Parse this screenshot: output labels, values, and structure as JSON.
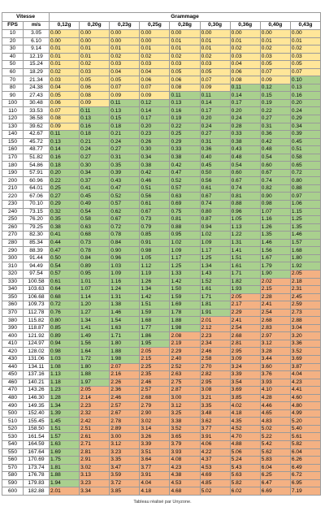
{
  "header": {
    "groups": [
      "Vitesse",
      "Grammage"
    ],
    "columns": [
      "FPS",
      "m/s",
      "0,12g",
      "0,20g",
      "0,23g",
      "0,25g",
      "0,28g",
      "0,30g",
      "0,36g",
      "0,40g",
      "0,43g"
    ]
  },
  "rows": [
    [
      "10",
      "3.05",
      "0.00",
      "0.00",
      "0.00",
      "0.00",
      "0.00",
      "0.00",
      "0.00",
      "0.00",
      "0.00"
    ],
    [
      "20",
      "6.10",
      "0.00",
      "0.00",
      "0.00",
      "0.00",
      "0.01",
      "0.01",
      "0.01",
      "0.01",
      "0.01"
    ],
    [
      "30",
      "9.14",
      "0.01",
      "0.01",
      "0.01",
      "0.01",
      "0.01",
      "0.01",
      "0.02",
      "0.02",
      "0.02"
    ],
    [
      "40",
      "12.19",
      "0.01",
      "0.01",
      "0.02",
      "0.02",
      "0.02",
      "0.02",
      "0.03",
      "0.03",
      "0.03"
    ],
    [
      "50",
      "15.24",
      "0.01",
      "0.02",
      "0.03",
      "0.03",
      "0.03",
      "0.03",
      "0.04",
      "0.05",
      "0.05"
    ],
    [
      "60",
      "18.29",
      "0.02",
      "0.03",
      "0.04",
      "0.04",
      "0.05",
      "0.05",
      "0.06",
      "0.07",
      "0.07"
    ],
    [
      "70",
      "21.34",
      "0.03",
      "0.05",
      "0.05",
      "0.06",
      "0.06",
      "0.07",
      "0.08",
      "0.09",
      "0.10"
    ],
    [
      "80",
      "24.38",
      "0.04",
      "0.06",
      "0.07",
      "0.07",
      "0.08",
      "0.09",
      "0.11",
      "0.12",
      "0.13"
    ],
    [
      "90",
      "27.43",
      "0.05",
      "0.08",
      "0.09",
      "0.09",
      "0.11",
      "0.11",
      "0.14",
      "0.15",
      "0.16"
    ],
    [
      "100",
      "30.48",
      "0.06",
      "0.09",
      "0.11",
      "0.12",
      "0.13",
      "0.14",
      "0.17",
      "0.19",
      "0.20"
    ],
    [
      "110",
      "33.53",
      "0.07",
      "0.11",
      "0.13",
      "0.14",
      "0.16",
      "0.17",
      "0.20",
      "0.22",
      "0.24"
    ],
    [
      "120",
      "36.58",
      "0.08",
      "0.13",
      "0.15",
      "0.17",
      "0.19",
      "0.20",
      "0.24",
      "0.27",
      "0.29"
    ],
    [
      "130",
      "39.62",
      "0.09",
      "0.16",
      "0.18",
      "0.20",
      "0.22",
      "0.24",
      "0.28",
      "0.31",
      "0.34"
    ],
    [
      "140",
      "42.67",
      "0.11",
      "0.18",
      "0.21",
      "0.23",
      "0.25",
      "0.27",
      "0.33",
      "0.36",
      "0.39"
    ],
    [
      "150",
      "45.72",
      "0.13",
      "0.21",
      "0.24",
      "0.26",
      "0.29",
      "0.31",
      "0.38",
      "0.42",
      "0.45"
    ],
    [
      "160",
      "48.77",
      "0.14",
      "0.24",
      "0.27",
      "0.30",
      "0.33",
      "0.36",
      "0.43",
      "0.48",
      "0.51"
    ],
    [
      "170",
      "51.82",
      "0.16",
      "0.27",
      "0.31",
      "0.34",
      "0.38",
      "0.40",
      "0.48",
      "0.54",
      "0.58"
    ],
    [
      "180",
      "54.86",
      "0.18",
      "0.30",
      "0.35",
      "0.38",
      "0.42",
      "0.45",
      "0.54",
      "0.60",
      "0.65"
    ],
    [
      "190",
      "57.91",
      "0.20",
      "0.34",
      "0.39",
      "0.42",
      "0.47",
      "0.50",
      "0.60",
      "0.67",
      "0.72"
    ],
    [
      "200",
      "60.96",
      "0.22",
      "0.37",
      "0.43",
      "0.46",
      "0.52",
      "0.56",
      "0.67",
      "0.74",
      "0.80"
    ],
    [
      "210",
      "64.01",
      "0.25",
      "0.41",
      "0.47",
      "0.51",
      "0.57",
      "0.61",
      "0.74",
      "0.82",
      "0.88"
    ],
    [
      "220",
      "67.06",
      "0.27",
      "0.45",
      "0.52",
      "0.56",
      "0.63",
      "0.67",
      "0.81",
      "0.90",
      "0.97"
    ],
    [
      "230",
      "70.10",
      "0.29",
      "0.49",
      "0.57",
      "0.61",
      "0.69",
      "0.74",
      "0.88",
      "0.98",
      "1.06"
    ],
    [
      "240",
      "73.15",
      "0.32",
      "0.54",
      "0.62",
      "0.67",
      "0.75",
      "0.80",
      "0.96",
      "1.07",
      "1.15"
    ],
    [
      "250",
      "76.20",
      "0.35",
      "0.58",
      "0.67",
      "0.73",
      "0.81",
      "0.87",
      "1.05",
      "1.16",
      "1.25"
    ],
    [
      "260",
      "79.25",
      "0.38",
      "0.63",
      "0.72",
      "0.79",
      "0.88",
      "0.94",
      "1.13",
      "1.26",
      "1.35"
    ],
    [
      "270",
      "82.30",
      "0.41",
      "0.68",
      "0.78",
      "0.85",
      "0.95",
      "1.02",
      "1.22",
      "1.35",
      "1.46"
    ],
    [
      "280",
      "85.34",
      "0.44",
      "0.73",
      "0.84",
      "0.91",
      "1.02",
      "1.09",
      "1.31",
      "1.46",
      "1.57"
    ],
    [
      "290",
      "88.39",
      "0.47",
      "0.78",
      "0.90",
      "0.98",
      "1.09",
      "1.17",
      "1.41",
      "1.56",
      "1.68"
    ],
    [
      "300",
      "91.44",
      "0.50",
      "0.84",
      "0.96",
      "1.05",
      "1.17",
      "1.25",
      "1.51",
      "1.67",
      "1.80"
    ],
    [
      "310",
      "94.49",
      "0.54",
      "0.89",
      "1.03",
      "1.12",
      "1.25",
      "1.34",
      "1.61",
      "1.79",
      "1.92"
    ],
    [
      "320",
      "97.54",
      "0.57",
      "0.95",
      "1.09",
      "1.19",
      "1.33",
      "1.43",
      "1.71",
      "1.90",
      "2.05"
    ],
    [
      "330",
      "100.58",
      "0.61",
      "1.01",
      "1.16",
      "1.26",
      "1.42",
      "1.52",
      "1.82",
      "2.02",
      "2.18"
    ],
    [
      "340",
      "103.63",
      "0.64",
      "1.07",
      "1.24",
      "1.34",
      "1.50",
      "1.61",
      "1.93",
      "2.15",
      "2.31"
    ],
    [
      "350",
      "106.68",
      "0.68",
      "1.14",
      "1.31",
      "1.42",
      "1.59",
      "1.71",
      "2.05",
      "2.28",
      "2.45"
    ],
    [
      "360",
      "109.73",
      "0.72",
      "1.20",
      "1.38",
      "1.51",
      "1.69",
      "1.81",
      "2.17",
      "2.41",
      "2.59"
    ],
    [
      "370",
      "112.78",
      "0.76",
      "1.27",
      "1.46",
      "1.59",
      "1.78",
      "1.91",
      "2.29",
      "2.54",
      "2.73"
    ],
    [
      "380",
      "115.82",
      "0.80",
      "1.34",
      "1.54",
      "1.68",
      "1.88",
      "2.01",
      "2.41",
      "2.68",
      "2.88"
    ],
    [
      "390",
      "118.87",
      "0.85",
      "1.41",
      "1.63",
      "1.77",
      "1.98",
      "2.12",
      "2.54",
      "2.83",
      "3.04"
    ],
    [
      "400",
      "121.92",
      "0.89",
      "1.49",
      "1.71",
      "1.86",
      "2.08",
      "2.23",
      "2.68",
      "2.97",
      "3.20"
    ],
    [
      "410",
      "124.97",
      "0.94",
      "1.56",
      "1.80",
      "1.95",
      "2.19",
      "2.34",
      "2.81",
      "3.12",
      "3.36"
    ],
    [
      "420",
      "128.02",
      "0.98",
      "1.64",
      "1.88",
      "2.05",
      "2.29",
      "2.46",
      "2.95",
      "3.28",
      "3.52"
    ],
    [
      "430",
      "131.06",
      "1.03",
      "1.72",
      "1.98",
      "2.15",
      "2.40",
      "2.58",
      "3.09",
      "3.44",
      "3.69"
    ],
    [
      "440",
      "134.11",
      "1.08",
      "1.80",
      "2.07",
      "2.25",
      "2.52",
      "2.70",
      "3.24",
      "3.60",
      "3.87"
    ],
    [
      "450",
      "137.16",
      "1.13",
      "1.88",
      "2.16",
      "2.35",
      "2.63",
      "2.82",
      "3.39",
      "3.76",
      "4.04"
    ],
    [
      "460",
      "140.21",
      "1.18",
      "1.97",
      "2.26",
      "2.46",
      "2.75",
      "2.95",
      "3.54",
      "3.93",
      "4.23"
    ],
    [
      "470",
      "143.26",
      "1.23",
      "2.05",
      "2.36",
      "2.57",
      "2.87",
      "3.08",
      "3.69",
      "4.10",
      "4.41"
    ],
    [
      "480",
      "146.30",
      "1.28",
      "2.14",
      "2.46",
      "2.68",
      "3.00",
      "3.21",
      "3.85",
      "4.28",
      "4.60"
    ],
    [
      "490",
      "149.35",
      "1.34",
      "2.23",
      "2.57",
      "2.79",
      "3.12",
      "3.35",
      "4.02",
      "4.46",
      "4.80"
    ],
    [
      "500",
      "152.40",
      "1.39",
      "2.32",
      "2.67",
      "2.90",
      "3.25",
      "3.48",
      "4.18",
      "4.65",
      "4.99"
    ],
    [
      "510",
      "155.45",
      "1.45",
      "2.42",
      "2.78",
      "3.02",
      "3.38",
      "3.62",
      "4.35",
      "4.83",
      "5.20"
    ],
    [
      "520",
      "158.50",
      "1.51",
      "2.51",
      "2.89",
      "3.14",
      "3.52",
      "3.77",
      "4.52",
      "5.02",
      "5.40"
    ],
    [
      "530",
      "161.54",
      "1.57",
      "2.61",
      "3.00",
      "3.26",
      "3.65",
      "3.91",
      "4.70",
      "5.22",
      "5.61"
    ],
    [
      "540",
      "164.59",
      "1.63",
      "2.71",
      "3.12",
      "3.39",
      "3.79",
      "4.06",
      "4.88",
      "5.42",
      "5.82"
    ],
    [
      "550",
      "167.64",
      "1.69",
      "2.81",
      "3.23",
      "3.51",
      "3.93",
      "4.22",
      "5.06",
      "5.62",
      "6.04"
    ],
    [
      "560",
      "170.69",
      "1.75",
      "2.91",
      "3.35",
      "3.64",
      "4.08",
      "4.37",
      "5.24",
      "5.83",
      "6.26"
    ],
    [
      "570",
      "173.74",
      "1.81",
      "3.02",
      "3.47",
      "3.77",
      "4.23",
      "4.53",
      "5.43",
      "6.04",
      "6.49"
    ],
    [
      "580",
      "176.78",
      "1.88",
      "3.13",
      "3.59",
      "3.91",
      "4.38",
      "4.69",
      "5.63",
      "6.25",
      "6.72"
    ],
    [
      "590",
      "179.83",
      "1.94",
      "3.23",
      "3.72",
      "4.04",
      "4.53",
      "4.85",
      "5.82",
      "6.47",
      "6.95"
    ],
    [
      "600",
      "182.88",
      "2.01",
      "3.34",
      "3.85",
      "4.18",
      "4.68",
      "5.02",
      "6.02",
      "6.69",
      "7.19"
    ]
  ],
  "footer": "Tableau réalisé par Unyzone."
}
